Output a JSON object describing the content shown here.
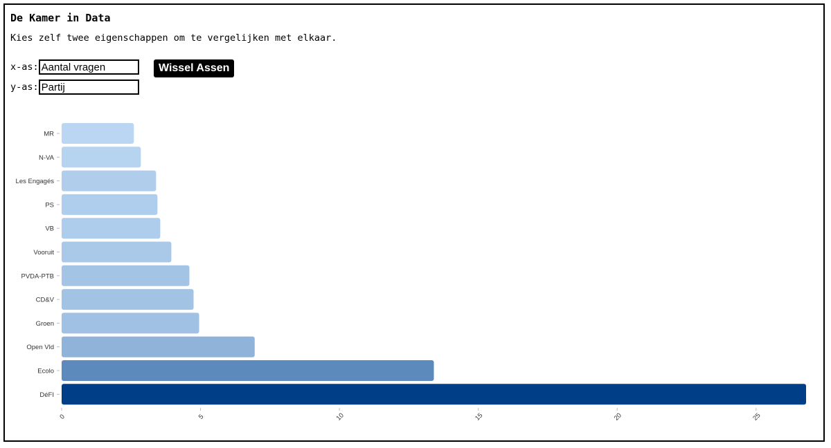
{
  "header": {
    "title": "De Kamer in Data",
    "subtitle": "Kies zelf twee eigenschappen om te vergelijken met elkaar."
  },
  "controls": {
    "x_label": "x-as:",
    "x_value": "Aantal vragen",
    "y_label": "y-as:",
    "y_value": "Partij",
    "swap_label": "Wissel Assen"
  },
  "chart_data": {
    "type": "bar",
    "orientation": "horizontal",
    "categories": [
      "MR",
      "N-VA",
      "Les Engagés",
      "PS",
      "VB",
      "Vooruit",
      "PVDA-PTB",
      "CD&V",
      "Groen",
      "Open Vld",
      "Ecolo",
      "DéFI"
    ],
    "values": [
      2.6,
      2.85,
      3.4,
      3.45,
      3.55,
      3.95,
      4.6,
      4.75,
      4.95,
      6.95,
      13.4,
      26.8
    ],
    "xlim": [
      0,
      26.8
    ],
    "xticks": [
      0,
      5,
      10,
      15,
      20,
      25
    ],
    "grid": false,
    "legend": "none",
    "color_low": "#bad6f2",
    "color_high": "#003f87",
    "title": "",
    "xlabel": "",
    "ylabel": ""
  }
}
